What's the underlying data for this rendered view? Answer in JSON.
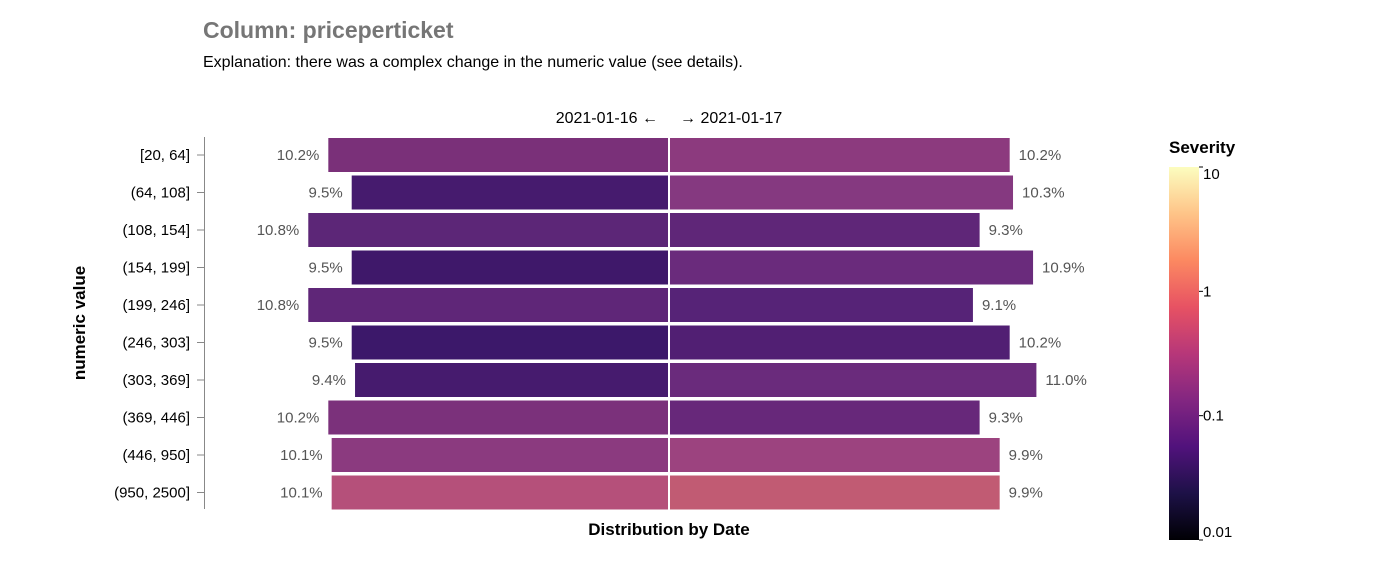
{
  "title": "Column: priceperticket",
  "subtitle": "Explanation: there was a complex change in the numeric value (see details).",
  "chart_data": {
    "type": "bar",
    "title": "Column: priceperticket",
    "subtitle": "Explanation: there was a complex change in the numeric value (see details).",
    "xlabel": "Distribution by Date",
    "ylabel": "numeric value",
    "left_header": "2021-01-16 ←",
    "right_header": "→ 2021-01-17",
    "categories": [
      "[20, 64]",
      "(64, 108]",
      "(108, 154]",
      "(154, 199]",
      "(199, 246]",
      "(246, 303]",
      "(303, 369]",
      "(369, 446]",
      "(446, 950]",
      "(950, 2500]"
    ],
    "series": [
      {
        "name": "2021-01-16",
        "values": [
          10.2,
          9.5,
          10.8,
          9.5,
          10.8,
          9.5,
          9.4,
          10.2,
          10.1,
          10.1
        ],
        "labels": [
          "10.2%",
          "9.5%",
          "10.8%",
          "9.5%",
          "10.8%",
          "9.5%",
          "9.4%",
          "10.2%",
          "10.1%",
          "10.1%"
        ],
        "colors": [
          "#7a3079",
          "#461b6e",
          "#5c2677",
          "#3f186a",
          "#5f2678",
          "#3c186a",
          "#461b6e",
          "#7b317b",
          "#8b3a7f",
          "#b5507a"
        ]
      },
      {
        "name": "2021-01-17",
        "values": [
          10.2,
          10.3,
          9.3,
          10.9,
          9.1,
          10.2,
          11.0,
          9.3,
          9.9,
          9.9
        ],
        "labels": [
          "10.2%",
          "10.3%",
          "9.3%",
          "10.9%",
          "9.1%",
          "10.2%",
          "11.0%",
          "9.3%",
          "9.9%",
          "9.9%"
        ],
        "colors": [
          "#8c3a7e",
          "#853980",
          "#5f2678",
          "#6a2b7c",
          "#562377",
          "#511f73",
          "#6a2b7c",
          "#67287a",
          "#9c437f",
          "#c15b73"
        ]
      }
    ],
    "legend": {
      "title": "Severity",
      "scale": "log",
      "domain": [
        0.01,
        10
      ],
      "ticks": [
        "10",
        "1",
        "0.1",
        "0.01"
      ],
      "colors": [
        "#000004",
        "#1d1147",
        "#51127c",
        "#832681",
        "#b73779",
        "#e75263",
        "#fc8961",
        "#fec488",
        "#fcfdbf"
      ],
      "placement": "right"
    },
    "grid": false
  }
}
